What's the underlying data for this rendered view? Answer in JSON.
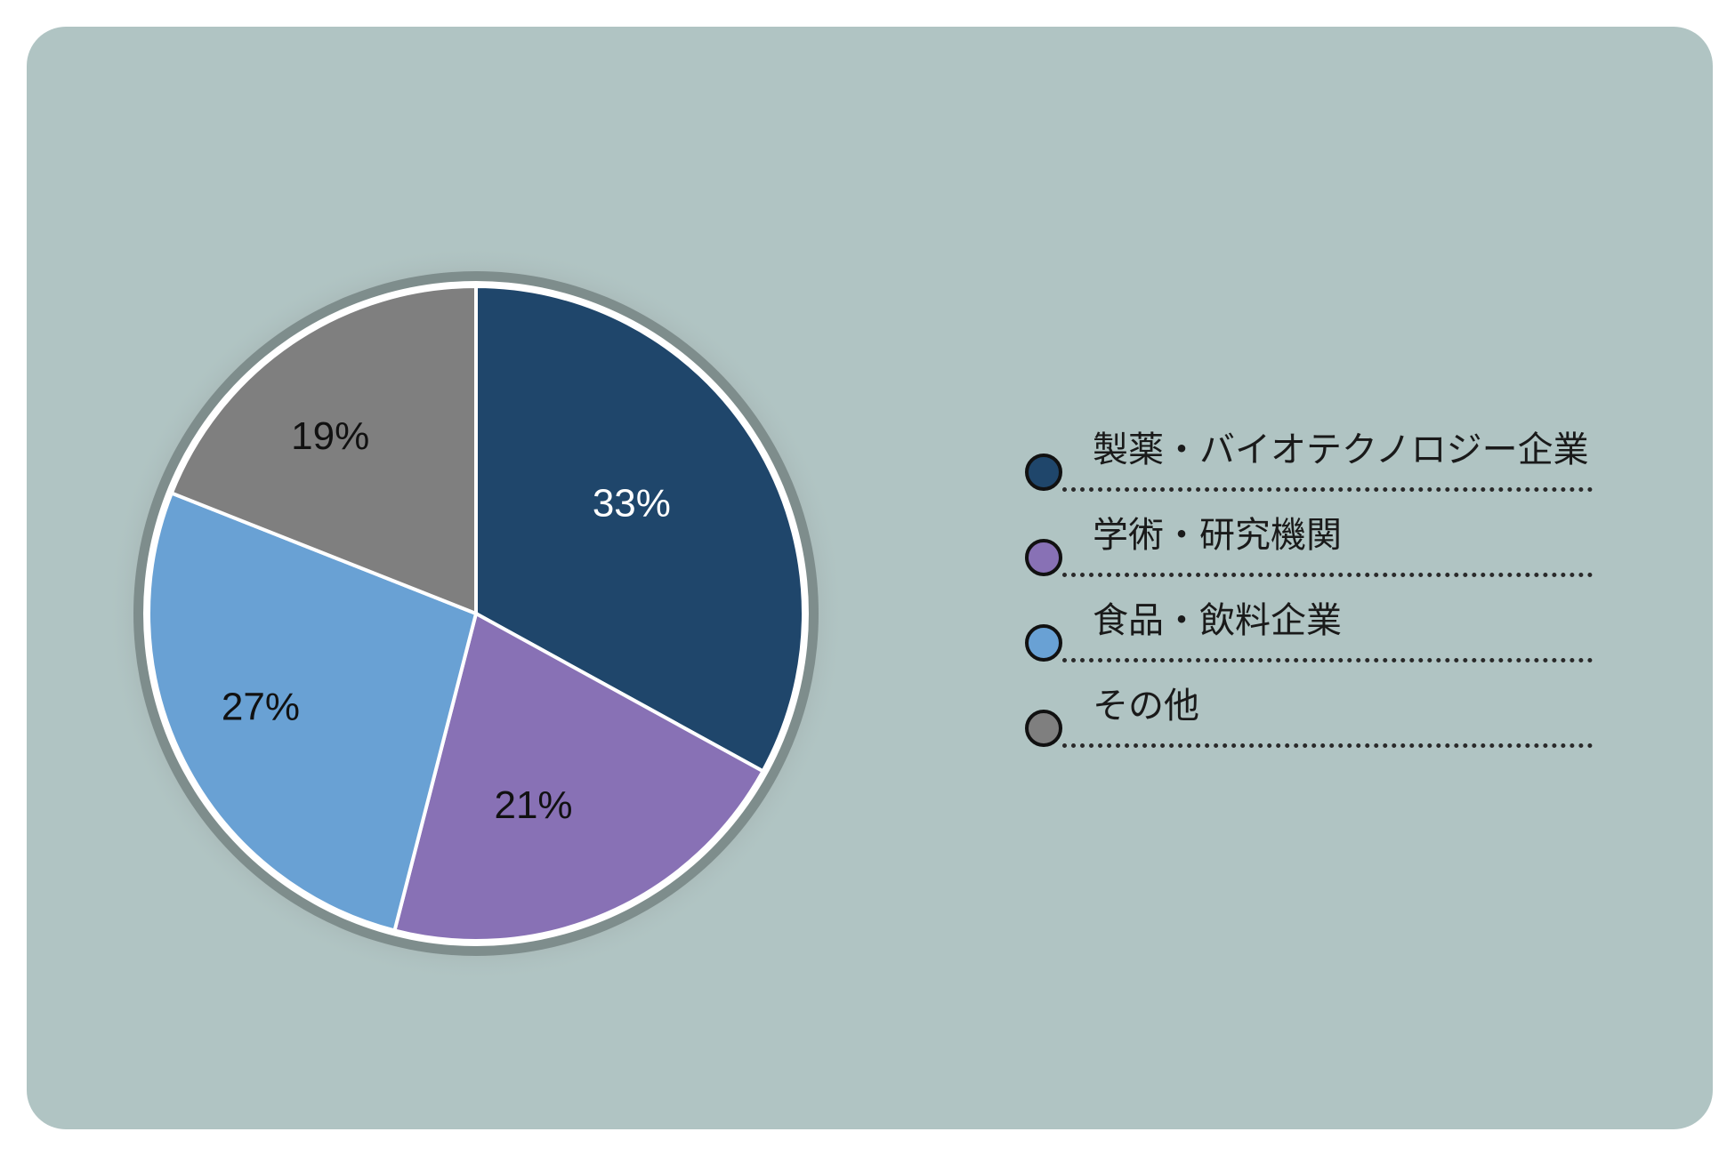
{
  "colors": {
    "background": "#b0c4c3",
    "pharma": "#1f466b",
    "academic": "#8871b5",
    "food": "#69a1d4",
    "other": "#7f7f7f"
  },
  "chart_data": {
    "type": "pie",
    "title": "",
    "categories": [
      "製薬・バイオテクノロジー企業",
      "学術・研究機関",
      "食品・飲料企業",
      "その他"
    ],
    "values": [
      33,
      21,
      27,
      19
    ],
    "labels": [
      "33%",
      "21%",
      "27%",
      "19%"
    ],
    "colors": [
      "#1f466b",
      "#8871b5",
      "#69a1d4",
      "#7f7f7f"
    ],
    "legend_position": "right"
  }
}
